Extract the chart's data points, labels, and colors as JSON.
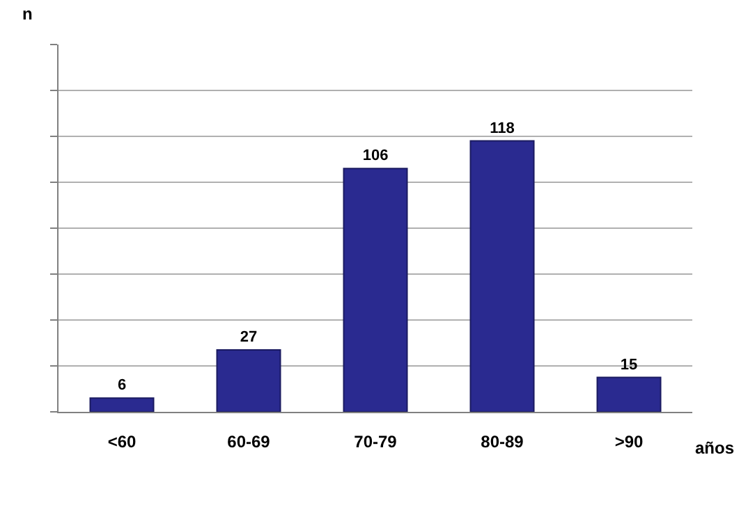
{
  "chart_data": {
    "type": "bar",
    "xlabel": "años",
    "ylabel": "n",
    "categories": [
      "<60",
      "60-69",
      "70-79",
      "80-89",
      ">90"
    ],
    "values": [
      6,
      27,
      106,
      118,
      15
    ],
    "color": "#2a2a90",
    "ylim": [
      0,
      160
    ],
    "yticks": [
      {
        "value": 0,
        "label": null
      },
      {
        "value": 20,
        "label": null
      },
      {
        "value": 40,
        "label": null
      },
      {
        "value": 60,
        "label": null
      },
      {
        "value": 80,
        "label": null
      },
      {
        "value": 100,
        "label": null
      },
      {
        "value": 120,
        "label": null
      },
      {
        "value": 140,
        "label": null
      },
      {
        "value": 160,
        "label": null
      }
    ],
    "grid": "y",
    "data_labels": true
  }
}
